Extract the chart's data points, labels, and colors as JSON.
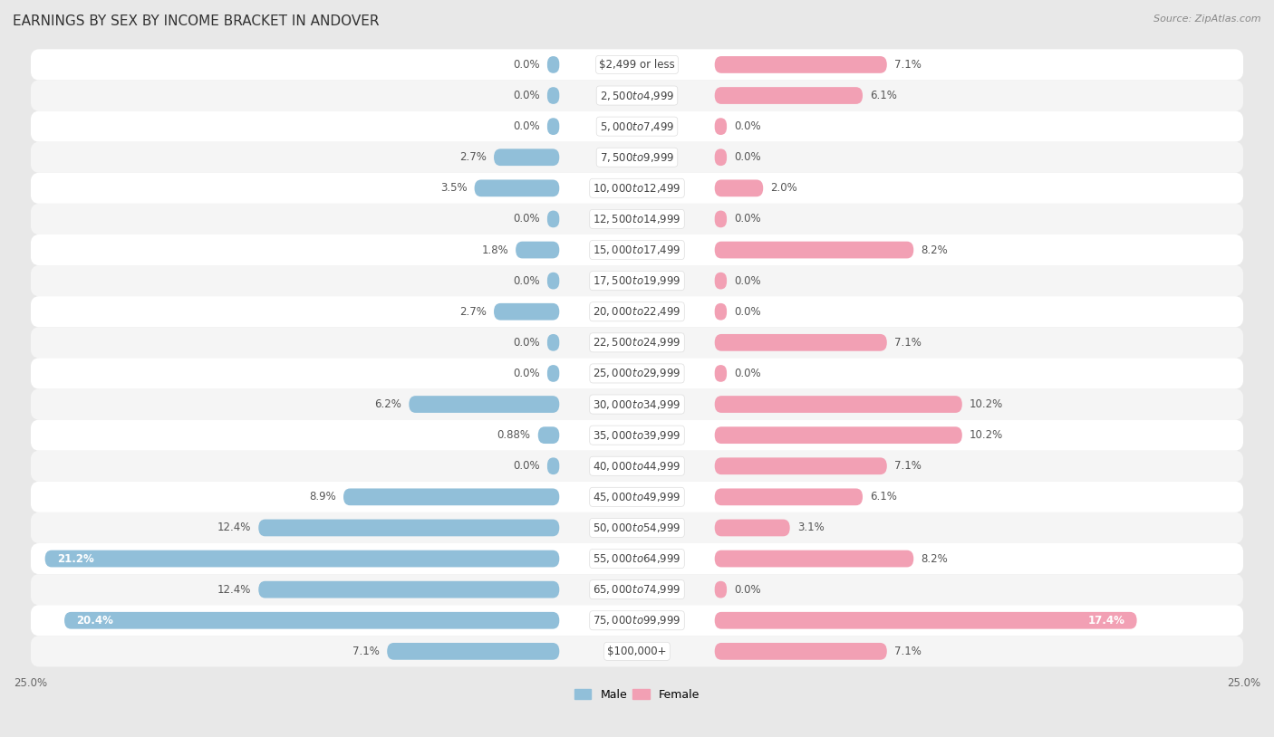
{
  "title": "EARNINGS BY SEX BY INCOME BRACKET IN ANDOVER",
  "source": "Source: ZipAtlas.com",
  "categories": [
    "$2,499 or less",
    "$2,500 to $4,999",
    "$5,000 to $7,499",
    "$7,500 to $9,999",
    "$10,000 to $12,499",
    "$12,500 to $14,999",
    "$15,000 to $17,499",
    "$17,500 to $19,999",
    "$20,000 to $22,499",
    "$22,500 to $24,999",
    "$25,000 to $29,999",
    "$30,000 to $34,999",
    "$35,000 to $39,999",
    "$40,000 to $44,999",
    "$45,000 to $49,999",
    "$50,000 to $54,999",
    "$55,000 to $64,999",
    "$65,000 to $74,999",
    "$75,000 to $99,999",
    "$100,000+"
  ],
  "male_values": [
    0.0,
    0.0,
    0.0,
    2.7,
    3.5,
    0.0,
    1.8,
    0.0,
    2.7,
    0.0,
    0.0,
    6.2,
    0.88,
    0.0,
    8.9,
    12.4,
    21.2,
    12.4,
    20.4,
    7.1
  ],
  "female_values": [
    7.1,
    6.1,
    0.0,
    0.0,
    2.0,
    0.0,
    8.2,
    0.0,
    0.0,
    7.1,
    0.0,
    10.2,
    10.2,
    7.1,
    6.1,
    3.1,
    8.2,
    0.0,
    17.4,
    7.1
  ],
  "male_color": "#91bfd9",
  "female_color": "#f2a0b4",
  "xlim": 25.0,
  "row_color_even": "#f5f5f5",
  "row_color_odd": "#ffffff",
  "bar_height": 0.55,
  "title_fontsize": 11,
  "label_fontsize": 8.5,
  "cat_fontsize": 8.5,
  "axis_fontsize": 8.5,
  "source_fontsize": 8
}
